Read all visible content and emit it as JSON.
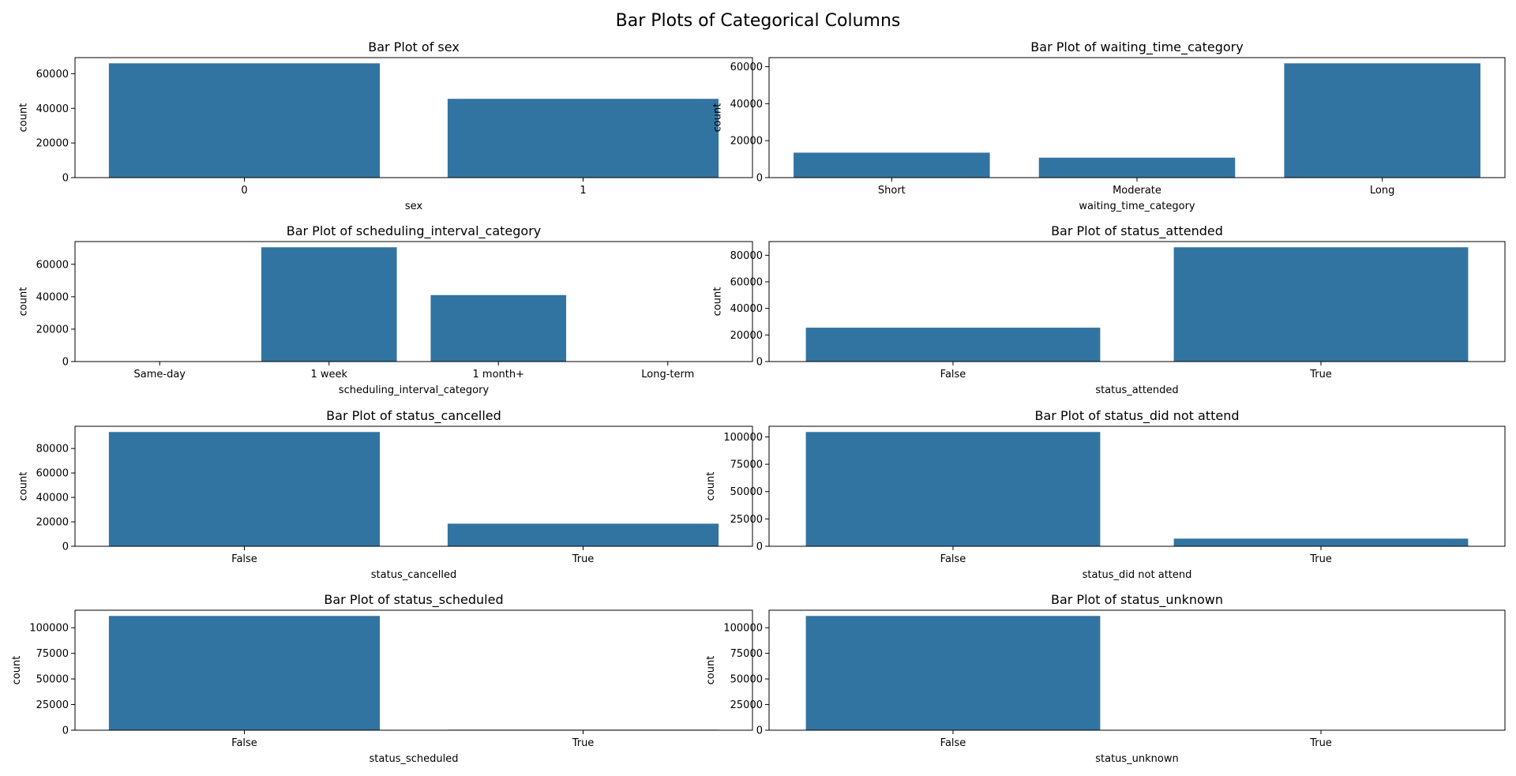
{
  "page": {
    "title": "Bar Plots of Categorical Columns"
  },
  "style": {
    "bar_color": "#3274a1",
    "axis_color": "#000000"
  },
  "chart_data": [
    {
      "type": "bar",
      "title": "Bar Plot of sex",
      "xlabel": "sex",
      "ylabel": "count",
      "categories": [
        "0",
        "1"
      ],
      "values": [
        66000,
        45500
      ],
      "ylim": [
        0,
        69300
      ],
      "yticks": [
        0,
        20000,
        40000,
        60000
      ]
    },
    {
      "type": "bar",
      "title": "Bar Plot of waiting_time_category",
      "xlabel": "waiting_time_category",
      "ylabel": "count",
      "categories": [
        "Short",
        "Moderate",
        "Long"
      ],
      "values": [
        13500,
        10800,
        61800
      ],
      "ylim": [
        0,
        64890
      ],
      "yticks": [
        0,
        20000,
        40000,
        60000
      ]
    },
    {
      "type": "bar",
      "title": "Bar Plot of scheduling_interval_category",
      "xlabel": "scheduling_interval_category",
      "ylabel": "count",
      "categories": [
        "Same-day",
        "1 week",
        "1 month+",
        "Long-term"
      ],
      "values": [
        0,
        70500,
        41000,
        0
      ],
      "ylim": [
        0,
        74025
      ],
      "yticks": [
        0,
        20000,
        40000,
        60000
      ]
    },
    {
      "type": "bar",
      "title": "Bar Plot of status_attended",
      "xlabel": "status_attended",
      "ylabel": "count",
      "categories": [
        "False",
        "True"
      ],
      "values": [
        25500,
        86000
      ],
      "ylim": [
        0,
        90300
      ],
      "yticks": [
        0,
        20000,
        40000,
        60000,
        80000
      ]
    },
    {
      "type": "bar",
      "title": "Bar Plot of status_cancelled",
      "xlabel": "status_cancelled",
      "ylabel": "count",
      "categories": [
        "False",
        "True"
      ],
      "values": [
        93500,
        18500
      ],
      "ylim": [
        0,
        98175
      ],
      "yticks": [
        0,
        20000,
        40000,
        60000,
        80000
      ]
    },
    {
      "type": "bar",
      "title": "Bar Plot of status_did not attend",
      "xlabel": "status_did not attend",
      "ylabel": "count",
      "categories": [
        "False",
        "True"
      ],
      "values": [
        104500,
        7000
      ],
      "ylim": [
        0,
        109725
      ],
      "yticks": [
        0,
        25000,
        50000,
        75000,
        100000
      ]
    },
    {
      "type": "bar",
      "title": "Bar Plot of status_scheduled",
      "xlabel": "status_scheduled",
      "ylabel": "count",
      "categories": [
        "False",
        "True"
      ],
      "values": [
        111500,
        500
      ],
      "ylim": [
        0,
        117075
      ],
      "yticks": [
        0,
        25000,
        50000,
        75000,
        100000
      ]
    },
    {
      "type": "bar",
      "title": "Bar Plot of status_unknown",
      "xlabel": "status_unknown",
      "ylabel": "count",
      "categories": [
        "False",
        "True"
      ],
      "values": [
        111500,
        300
      ],
      "ylim": [
        0,
        117075
      ],
      "yticks": [
        0,
        25000,
        50000,
        75000,
        100000
      ]
    }
  ]
}
